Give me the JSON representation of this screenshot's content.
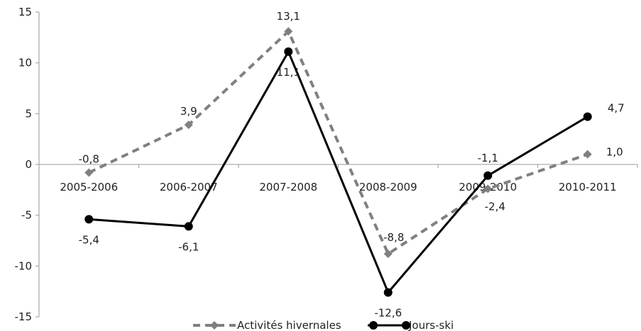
{
  "chart_data": {
    "type": "line",
    "categories": [
      "2005-2006",
      "2006-2007",
      "2007-2008",
      "2008-2009",
      "2009-2010",
      "2010-2011"
    ],
    "series": [
      {
        "name": "Activités hivernales",
        "values": [
          -0.8,
          3.9,
          13.1,
          -8.8,
          -2.4,
          1.0
        ],
        "labels": [
          "-0,8",
          "3,9",
          "13,1",
          "-8,8",
          "-2,4",
          "1,0"
        ],
        "color": "#808080",
        "style": "dashed",
        "marker": "diamond"
      },
      {
        "name": "Jours-ski",
        "values": [
          -5.4,
          -6.1,
          11.1,
          -12.6,
          -1.1,
          4.7
        ],
        "labels": [
          "-5,4",
          "-6,1",
          "11,1",
          "-12,6",
          "-1,1",
          "4,7"
        ],
        "color": "#000000",
        "style": "solid",
        "marker": "circle"
      }
    ],
    "y_ticks": [
      "15",
      "10",
      "5",
      "0",
      "-5",
      "-10",
      "-15"
    ],
    "ylim": [
      -15,
      15
    ],
    "grid": false,
    "legend_position": "bottom"
  }
}
